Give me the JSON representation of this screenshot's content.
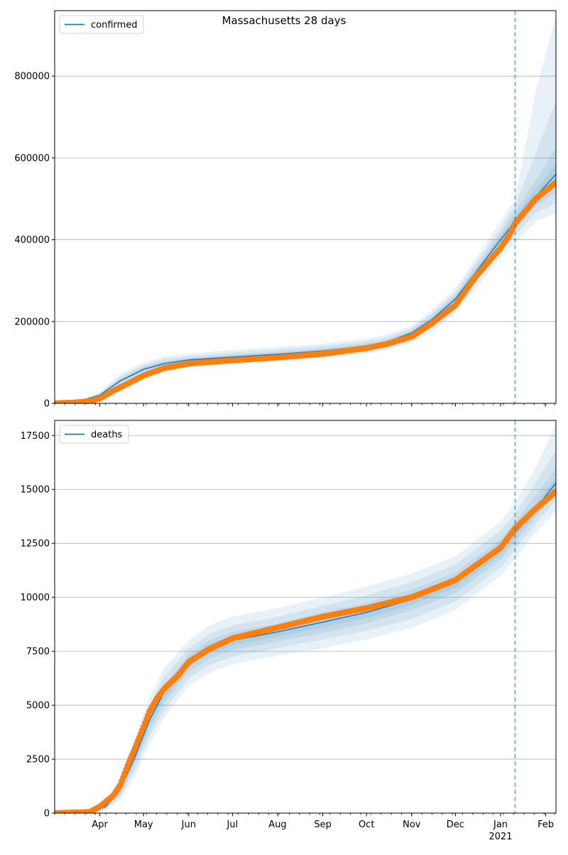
{
  "title": "Massachusetts 28 days",
  "colors": {
    "model_line": "#1f77b4",
    "band": "#1f77b4",
    "observed": "#ff7f0e",
    "forecast_line": "#1f77b4",
    "grid": "#b0b0b0"
  },
  "x_axis": {
    "range": [
      "2020-03-01",
      "2021-02-08"
    ],
    "month_ticks": [
      {
        "date": "2020-04-01",
        "label": "Apr"
      },
      {
        "date": "2020-05-01",
        "label": "May"
      },
      {
        "date": "2020-06-01",
        "label": "Jun"
      },
      {
        "date": "2020-07-01",
        "label": "Jul"
      },
      {
        "date": "2020-08-01",
        "label": "Aug"
      },
      {
        "date": "2020-09-01",
        "label": "Sep"
      },
      {
        "date": "2020-10-01",
        "label": "Oct"
      },
      {
        "date": "2020-11-01",
        "label": "Nov"
      },
      {
        "date": "2020-12-01",
        "label": "Dec"
      },
      {
        "date": "2021-01-01",
        "label": "Jan"
      },
      {
        "date": "2021-02-01",
        "label": "Feb"
      }
    ],
    "year_label": "2021",
    "forecast_start": "2021-01-11"
  },
  "chart_data": [
    {
      "type": "line",
      "legend": "confirmed",
      "legend_position": "top-left",
      "grid": "y",
      "ylim": [
        0,
        960000
      ],
      "yticks": [
        0,
        200000,
        400000,
        600000,
        800000
      ],
      "ytick_labels": [
        "0",
        "200000",
        "400000",
        "600000",
        "800000"
      ],
      "model": {
        "x": [
          "2020-03-01",
          "2020-03-15",
          "2020-04-01",
          "2020-04-15",
          "2020-05-01",
          "2020-05-15",
          "2020-06-01",
          "2020-07-01",
          "2020-08-01",
          "2020-09-01",
          "2020-10-01",
          "2020-10-15",
          "2020-11-01",
          "2020-11-15",
          "2020-12-01",
          "2020-12-15",
          "2021-01-01",
          "2021-01-11",
          "2021-01-25",
          "2021-02-08"
        ],
        "y": [
          0,
          2000,
          20000,
          55000,
          83000,
          97000,
          106000,
          113000,
          120000,
          128000,
          140000,
          150000,
          172000,
          205000,
          255000,
          320000,
          400000,
          445000,
          505000,
          560000
        ]
      },
      "bands": {
        "x": [
          "2020-03-01",
          "2020-03-15",
          "2020-04-01",
          "2020-04-15",
          "2020-05-01",
          "2020-05-15",
          "2020-06-01",
          "2020-07-01",
          "2020-08-01",
          "2020-09-01",
          "2020-10-01",
          "2020-10-15",
          "2020-11-01",
          "2020-11-15",
          "2020-12-01",
          "2020-12-15",
          "2021-01-01",
          "2021-01-11",
          "2021-01-25",
          "2021-02-08"
        ],
        "levels": [
          {
            "lower": [
              0,
              1000,
              15000,
              40000,
              68000,
              84000,
              94000,
              101000,
              106000,
              112000,
              122000,
              130000,
              148000,
              175000,
              220000,
              280000,
              355000,
              390000,
              445000,
              465000
            ],
            "upper": [
              0,
              3500,
              28000,
              72000,
              100000,
              114000,
              122000,
              130000,
              138000,
              146000,
              158000,
              168000,
              190000,
              228000,
              282000,
              355000,
              445000,
              500000,
              760000,
              950000
            ]
          },
          {
            "lower": [
              0,
              1300,
              17000,
              46000,
              74000,
              89000,
              98000,
              105000,
              111000,
              118000,
              129000,
              138000,
              158000,
              188000,
              235000,
              298000,
              373000,
              410000,
              465000,
              490000
            ],
            "upper": [
              0,
              3000,
              25000,
              66000,
              94000,
              108000,
              116000,
              124000,
              132000,
              140000,
              152000,
              162000,
              184000,
              220000,
              272000,
              343000,
              428000,
              485000,
              610000,
              740000
            ]
          },
          {
            "lower": [
              0,
              1600,
              18500,
              50000,
              78000,
              93000,
              102000,
              109000,
              116000,
              124000,
              135000,
              144000,
              165000,
              196000,
              245000,
              309000,
              386000,
              425000,
              482000,
              515000
            ],
            "upper": [
              0,
              2500,
              22500,
              61000,
              89000,
              103000,
              111000,
              119000,
              126000,
              134000,
              146000,
              156000,
              179000,
              214000,
              265000,
              333000,
              416000,
              470000,
              545000,
              625000
            ]
          },
          {
            "lower": [
              0,
              1800,
              19300,
              53000,
              81000,
              95000,
              104000,
              111000,
              118000,
              126000,
              138000,
              147000,
              169000,
              201000,
              250000,
              315000,
              393000,
              435000,
              493000,
              540000
            ],
            "upper": [
              0,
              2200,
              21000,
              58000,
              86000,
              100000,
              109000,
              116000,
              123000,
              131000,
              143000,
              153000,
              176000,
              210000,
              261000,
              327000,
              408000,
              458000,
              522000,
              585000
            ]
          }
        ]
      },
      "observed": {
        "x": [
          "2020-03-01",
          "2020-03-15",
          "2020-03-25",
          "2020-04-01",
          "2020-04-10",
          "2020-04-20",
          "2020-05-01",
          "2020-05-15",
          "2020-06-01",
          "2020-06-15",
          "2020-07-01",
          "2020-08-01",
          "2020-09-01",
          "2020-10-01",
          "2020-10-15",
          "2020-11-01",
          "2020-11-15",
          "2020-12-01",
          "2020-12-15",
          "2021-01-01",
          "2021-01-07",
          "2021-01-11",
          "2021-01-25",
          "2021-02-08"
        ],
        "y": [
          0,
          2000,
          5000,
          12000,
          30000,
          48000,
          68000,
          86000,
          97000,
          101000,
          105000,
          112000,
          121000,
          135000,
          145000,
          163000,
          196000,
          240000,
          310000,
          380000,
          412000,
          440000,
          500000,
          540000
        ]
      }
    },
    {
      "type": "line",
      "legend": "deaths",
      "legend_position": "top-left",
      "grid": "y",
      "ylim": [
        0,
        18200
      ],
      "yticks": [
        0,
        2500,
        5000,
        7500,
        10000,
        12500,
        15000,
        17500
      ],
      "ytick_labels": [
        "0",
        "2500",
        "5000",
        "7500",
        "10000",
        "12500",
        "15000",
        "17500"
      ],
      "model": {
        "x": [
          "2020-03-01",
          "2020-03-25",
          "2020-04-05",
          "2020-04-15",
          "2020-04-25",
          "2020-05-05",
          "2020-05-15",
          "2020-06-01",
          "2020-06-15",
          "2020-07-01",
          "2020-08-01",
          "2020-09-01",
          "2020-10-01",
          "2020-11-01",
          "2020-12-01",
          "2021-01-01",
          "2021-01-11",
          "2021-01-25",
          "2021-02-08"
        ],
        "y": [
          0,
          30,
          300,
          1100,
          2600,
          4300,
          5600,
          7000,
          7600,
          8000,
          8400,
          8850,
          9300,
          9900,
          10700,
          12200,
          13000,
          14100,
          15300
        ]
      },
      "bands": {
        "x": [
          "2020-03-01",
          "2020-03-25",
          "2020-04-05",
          "2020-04-15",
          "2020-04-25",
          "2020-05-05",
          "2020-05-15",
          "2020-06-01",
          "2020-06-15",
          "2020-07-01",
          "2020-08-01",
          "2020-09-01",
          "2020-10-01",
          "2020-11-01",
          "2020-12-01",
          "2021-01-01",
          "2021-01-11",
          "2021-01-25",
          "2021-02-08"
        ],
        "levels": [
          {
            "lower": [
              0,
              10,
              120,
              600,
              1700,
              3200,
              4400,
              5900,
              6500,
              6900,
              7300,
              7650,
              8050,
              8600,
              9400,
              11000,
              11800,
              13000,
              14000
            ],
            "upper": [
              0,
              60,
              500,
              1700,
              3500,
              5300,
              6700,
              8000,
              8700,
              9100,
              9500,
              10000,
              10500,
              11100,
              11900,
              13500,
              14400,
              16000,
              18000
            ]
          },
          {
            "lower": [
              0,
              15,
              170,
              750,
              2000,
              3550,
              4750,
              6250,
              6850,
              7250,
              7650,
              8050,
              8450,
              9000,
              9800,
              11400,
              12200,
              13400,
              14500
            ],
            "upper": [
              0,
              50,
              430,
              1500,
              3200,
              4950,
              6300,
              7650,
              8300,
              8700,
              9100,
              9600,
              10100,
              10700,
              11500,
              13100,
              13900,
              15300,
              16800
            ]
          },
          {
            "lower": [
              0,
              20,
              220,
              880,
              2250,
              3850,
              5100,
              6550,
              7150,
              7550,
              7950,
              8350,
              8800,
              9400,
              10200,
              11750,
              12550,
              13700,
              14850
            ],
            "upper": [
              0,
              40,
              380,
              1320,
              2950,
              4700,
              5950,
              7350,
              8000,
              8400,
              8800,
              9300,
              9750,
              10350,
              11150,
              12700,
              13500,
              14700,
              16000
            ]
          },
          {
            "lower": [
              0,
              25,
              260,
              980,
              2420,
              4050,
              5350,
              6780,
              7380,
              7780,
              8180,
              8600,
              9050,
              9650,
              10450,
              11970,
              12770,
              13900,
              15050
            ],
            "upper": [
              0,
              35,
              340,
              1220,
              2780,
              4550,
              5850,
              7220,
              7820,
              8220,
              8620,
              9100,
              9550,
              10150,
              10950,
              12430,
              13230,
              14300,
              15550
            ]
          }
        ]
      },
      "observed": {
        "x": [
          "2020-03-01",
          "2020-03-25",
          "2020-04-01",
          "2020-04-10",
          "2020-04-15",
          "2020-04-20",
          "2020-04-25",
          "2020-05-01",
          "2020-05-05",
          "2020-05-10",
          "2020-05-15",
          "2020-05-25",
          "2020-06-01",
          "2020-06-15",
          "2020-07-01",
          "2020-08-01",
          "2020-09-01",
          "2020-10-01",
          "2020-11-01",
          "2020-12-01",
          "2021-01-01",
          "2021-01-11",
          "2021-01-25",
          "2021-02-08"
        ],
        "y": [
          0,
          50,
          300,
          800,
          1300,
          2200,
          3000,
          4000,
          4700,
          5300,
          5750,
          6400,
          7000,
          7600,
          8100,
          8600,
          9100,
          9500,
          10000,
          10800,
          12300,
          13200,
          14100,
          14900
        ]
      }
    }
  ]
}
